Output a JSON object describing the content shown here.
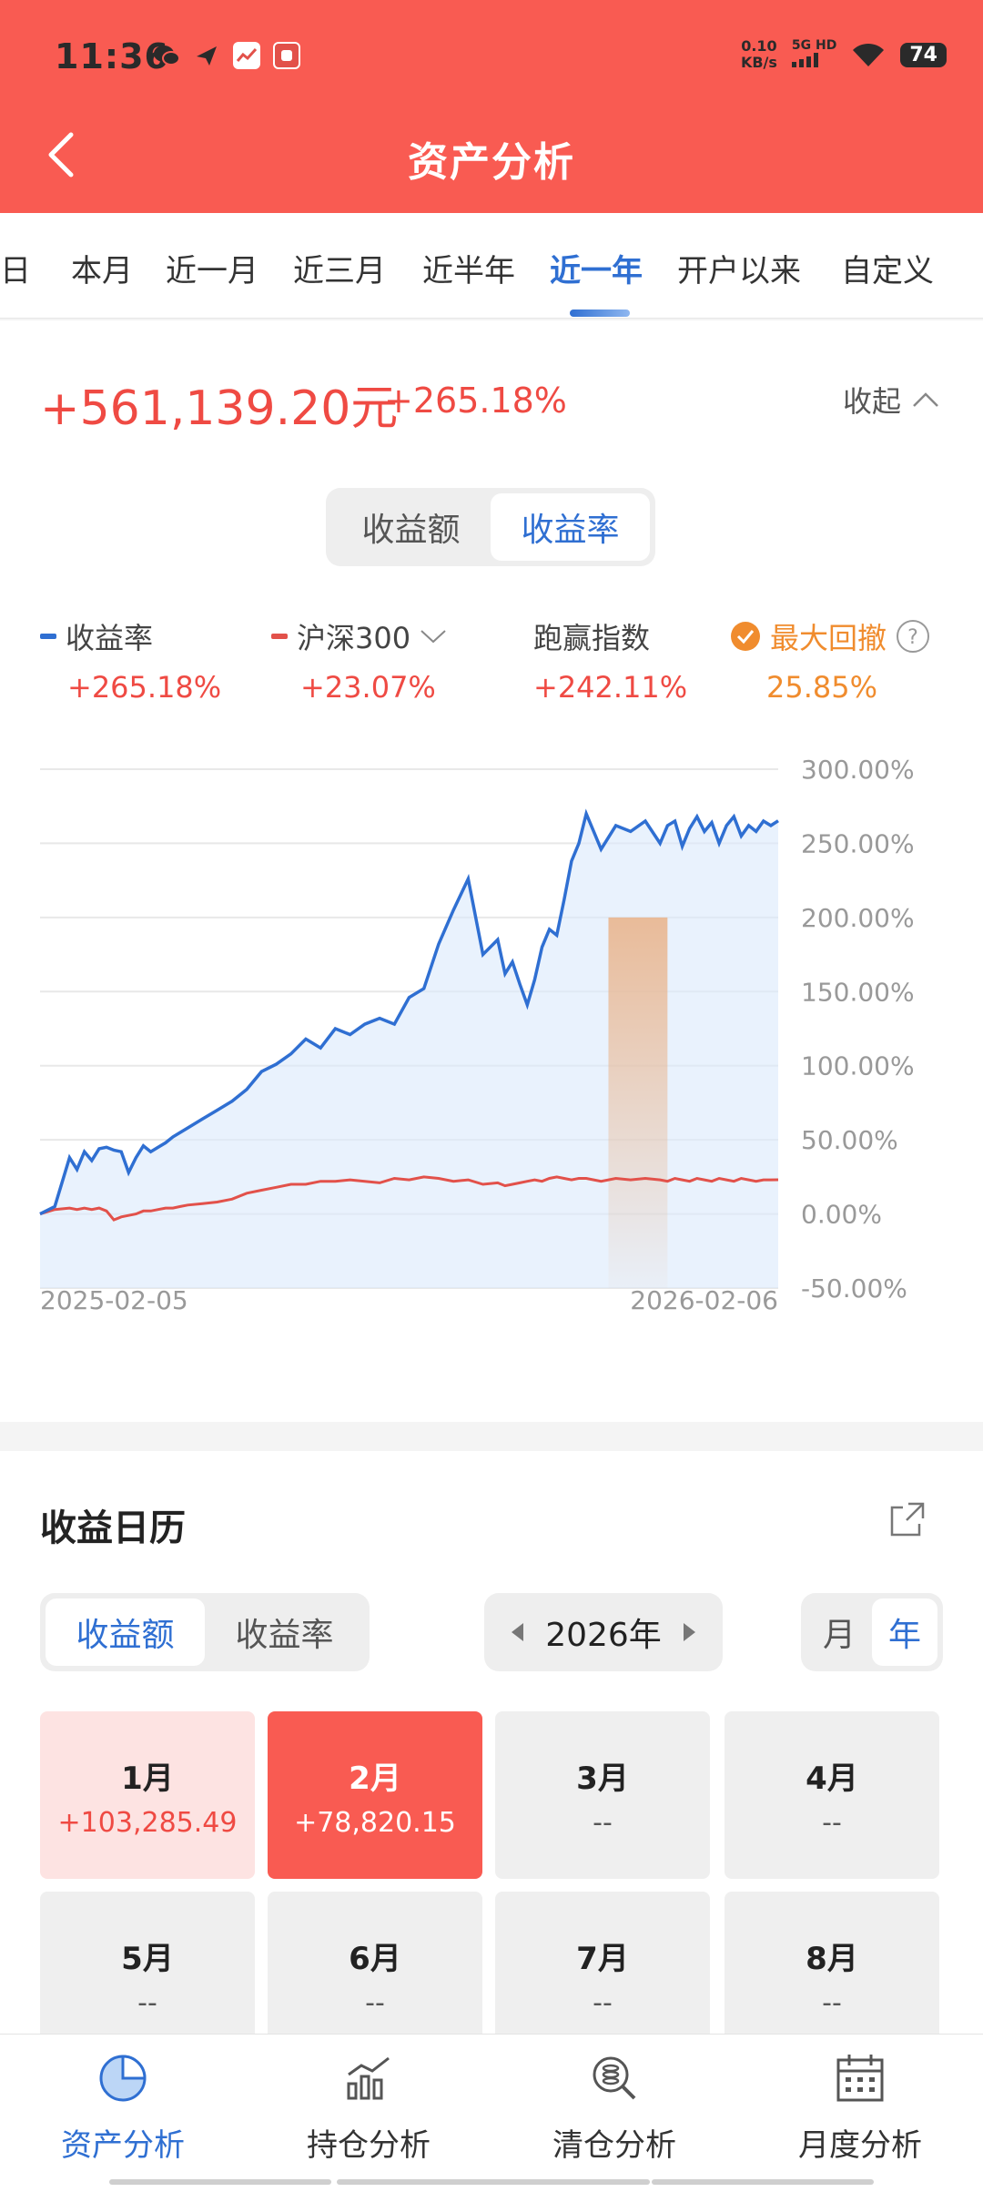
{
  "status_bar": {
    "time": "11:36",
    "speed_top": "0.10",
    "speed_bottom": "KB/s",
    "network": "5G HD",
    "battery": "74"
  },
  "header": {
    "title": "资产分析"
  },
  "tabs": [
    "当日",
    "本月",
    "近一月",
    "近三月",
    "近半年",
    "近一年",
    "开户以来",
    "自定义"
  ],
  "active_tab": "近一年",
  "summary": {
    "total": "+561,139.20元",
    "total_pct": "+265.18%",
    "collapse_label": "收起"
  },
  "chart_toggle": {
    "options": [
      "收益额",
      "收益率"
    ],
    "active": "收益率"
  },
  "legend": {
    "return": {
      "name": "收益率",
      "value": "+265.18%",
      "color": "#2f6fd2"
    },
    "benchmark": {
      "name": "沪深300",
      "value": "+23.07%",
      "color": "#e2514a"
    },
    "excess": {
      "name": "跑赢指数",
      "value": "+242.11%"
    },
    "drawdown": {
      "name": "最大回撤",
      "value": "25.85%",
      "color": "#f08c2e"
    }
  },
  "chart_data": {
    "type": "line",
    "x_labels": [
      "2025-02-05",
      "2026-02-06"
    ],
    "y_ticks": [
      "300.00%",
      "250.00%",
      "200.00%",
      "150.00%",
      "100.00%",
      "50.00%",
      "0.00%",
      "-50.00%"
    ],
    "ylim": [
      -50,
      300
    ],
    "y_axis_position": "right",
    "grid": true,
    "legend_placement": "top",
    "x": [
      0,
      2,
      4,
      5,
      6,
      7,
      8,
      9,
      10,
      11,
      12,
      13,
      14,
      15,
      16,
      17,
      18,
      19,
      20,
      22,
      24,
      26,
      28,
      30,
      32,
      34,
      36,
      38,
      40,
      42,
      44,
      46,
      48,
      50,
      52,
      54,
      56,
      58,
      60,
      62,
      63,
      64,
      65,
      66,
      67,
      68,
      69,
      70,
      71,
      72,
      73,
      74,
      75,
      76,
      78,
      80,
      82,
      84,
      85,
      86,
      87,
      88,
      89,
      90,
      91,
      92,
      93,
      94,
      95,
      96,
      97,
      98,
      99,
      100
    ],
    "series": [
      {
        "name": "收益率",
        "values": [
          0,
          5,
          38,
          30,
          42,
          36,
          44,
          45,
          43,
          42,
          28,
          38,
          46,
          42,
          45,
          48,
          52,
          55,
          58,
          64,
          70,
          76,
          84,
          96,
          101,
          108,
          118,
          112,
          125,
          121,
          128,
          132,
          128,
          146,
          152,
          182,
          205,
          226,
          175,
          185,
          162,
          170,
          155,
          141,
          158,
          180,
          192,
          188,
          212,
          238,
          250,
          270,
          258,
          246,
          262,
          258,
          265,
          250,
          262,
          265,
          248,
          260,
          268,
          258,
          264,
          250,
          262,
          268,
          255,
          262,
          258,
          265,
          262,
          265.18
        ]
      },
      {
        "name": "沪深300",
        "values": [
          0,
          3,
          4,
          3,
          4,
          3,
          4,
          2,
          -4,
          -2,
          -1,
          0,
          2,
          2,
          3,
          4,
          4,
          5,
          6,
          7,
          8,
          10,
          14,
          16,
          18,
          20,
          20,
          22,
          22,
          23,
          22,
          21,
          24,
          23,
          25,
          24,
          22,
          23,
          20,
          21,
          19,
          20,
          21,
          22,
          23,
          22,
          24,
          25,
          24,
          23,
          24,
          24,
          23,
          22,
          24,
          23,
          24,
          23,
          22,
          24,
          23,
          22,
          24,
          23,
          22,
          24,
          23,
          22,
          24,
          23,
          22,
          23,
          23,
          23.07
        ]
      }
    ],
    "drawdown_range": [
      77,
      85
    ]
  },
  "calendar": {
    "title": "收益日历",
    "toggle": {
      "options": [
        "收益额",
        "收益率"
      ],
      "active": "收益额"
    },
    "year": "2026年",
    "period": {
      "options": [
        "月",
        "年"
      ],
      "active": "年"
    },
    "months": [
      {
        "label": "1月",
        "value": "+103,285.49",
        "state": "positive"
      },
      {
        "label": "2月",
        "value": "+78,820.15",
        "state": "selected"
      },
      {
        "label": "3月",
        "value": "--",
        "state": "empty"
      },
      {
        "label": "4月",
        "value": "--",
        "state": "empty"
      },
      {
        "label": "5月",
        "value": "--",
        "state": "empty"
      },
      {
        "label": "6月",
        "value": "--",
        "state": "empty"
      },
      {
        "label": "7月",
        "value": "--",
        "state": "empty"
      },
      {
        "label": "8月",
        "value": "--",
        "state": "empty"
      }
    ]
  },
  "bottom_nav": [
    {
      "label": "资产分析",
      "icon": "pie-chart-icon",
      "active": true
    },
    {
      "label": "持仓分析",
      "icon": "bar-chart-icon",
      "active": false
    },
    {
      "label": "清仓分析",
      "icon": "search-stack-icon",
      "active": false
    },
    {
      "label": "月度分析",
      "icon": "calendar-icon",
      "active": false
    }
  ]
}
